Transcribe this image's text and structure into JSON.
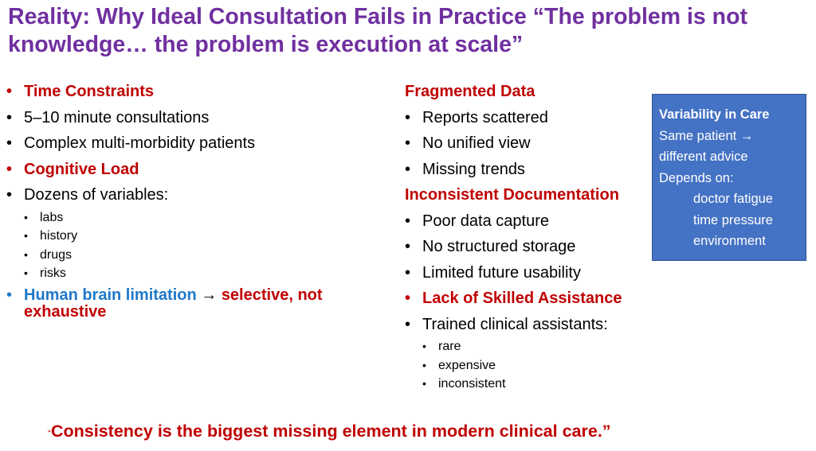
{
  "title": "Reality: Why Ideal Consultation Fails in Practice “The problem is not knowledge… the problem is execution at scale”",
  "left": {
    "time_constraints": "Time Constraints",
    "consult_length": "5–10 minute consultations",
    "complex_patients": "Complex multi-morbidity patients",
    "cognitive_load": "Cognitive Load",
    "dozens": "Dozens of variables:",
    "sub_items": [
      "labs",
      "history",
      "drugs",
      "risks"
    ],
    "brain_label": "Human brain limitation",
    "arrow": " → ",
    "brain_result": "selective, not exhaustive"
  },
  "middle": {
    "fragmented": "Fragmented Data",
    "fragmented_items": [
      "Reports scattered",
      "No unified view",
      "Missing trends"
    ],
    "inconsistent": "Inconsistent Documentation",
    "inconsistent_items": [
      "Poor data capture",
      "No structured storage",
      "Limited future usability"
    ],
    "lack": "Lack of Skilled Assistance",
    "trained": "Trained clinical assistants:",
    "trained_items": [
      "rare",
      "expensive",
      "inconsistent"
    ]
  },
  "box": {
    "title": "Variability in Care",
    "line1": "Same patient →",
    "line2": "different advice",
    "line3": "Depends on:",
    "factors": [
      "doctor fatigue",
      "time pressure",
      "environment"
    ]
  },
  "quote": {
    "open_mark": "“",
    "text": "Consistency is the biggest missing element in modern clinical care.”"
  },
  "colors": {
    "title": "#7030a0",
    "heading_red": "#c00000",
    "accent_blue": "#1f78c8",
    "box_fill": "#4472c4"
  }
}
